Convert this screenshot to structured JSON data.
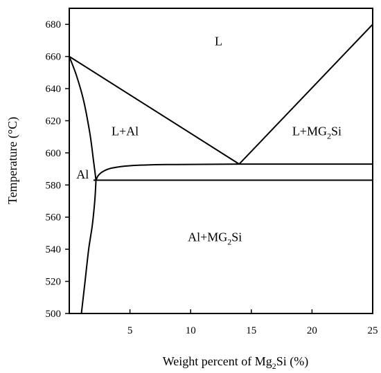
{
  "chart_data": {
    "type": "line",
    "title": "",
    "xlabel": "Weight percent of Mg",
    "xlabel_sub": "2",
    "xlabel_tail": "Si (%)",
    "ylabel": "Temperature (°C)",
    "xlim": [
      0,
      25
    ],
    "ylim": [
      500,
      690
    ],
    "x_ticks": [
      5,
      10,
      15,
      20,
      25
    ],
    "y_ticks": [
      500,
      520,
      540,
      560,
      580,
      600,
      620,
      640,
      660,
      680
    ],
    "grid": false,
    "series": [
      {
        "id": "liquidus-al",
        "x": [
          0,
          14
        ],
        "y": [
          660,
          593
        ]
      },
      {
        "id": "liquidus-mg2si",
        "x": [
          14,
          25
        ],
        "y": [
          593,
          680
        ]
      },
      {
        "id": "eutectic-line",
        "x": [
          14,
          25
        ],
        "y": [
          593,
          593
        ]
      },
      {
        "id": "solvus-line",
        "x": [
          2,
          25
        ],
        "y": [
          583,
          583
        ]
      },
      {
        "id": "solidus-al",
        "x": [
          0,
          0.6,
          1.2,
          1.7,
          2.0,
          2.2
        ],
        "y": [
          660,
          648,
          632,
          612,
          595,
          583
        ]
      },
      {
        "id": "solvus-curve",
        "x": [
          2.2,
          2.1,
          1.9,
          1.6,
          1.3,
          1.0
        ],
        "y": [
          583,
          570,
          555,
          540,
          520,
          500
        ]
      },
      {
        "id": "eutectic-knee",
        "x": [
          2.2,
          2.4,
          2.8,
          3.5,
          5.0,
          8.0,
          14.0
        ],
        "y": [
          583,
          586,
          588.5,
          590.5,
          592,
          592.7,
          593
        ]
      }
    ],
    "regions": [
      {
        "id": "L",
        "label": "L",
        "x": 12.3,
        "y": 667
      },
      {
        "id": "L-Al",
        "label": "L+Al",
        "x": 4.6,
        "y": 611
      },
      {
        "id": "L-Mg2Si",
        "label_main": "L+MG",
        "label_sub": "2",
        "label_tail": "Si",
        "x": 20.4,
        "y": 611
      },
      {
        "id": "Al",
        "label": "Al",
        "x": 1.1,
        "y": 584
      },
      {
        "id": "Al-Mg2Si",
        "label_main": "Al+MG",
        "label_sub": "2",
        "label_tail": "Si",
        "x": 12.0,
        "y": 545
      }
    ]
  }
}
